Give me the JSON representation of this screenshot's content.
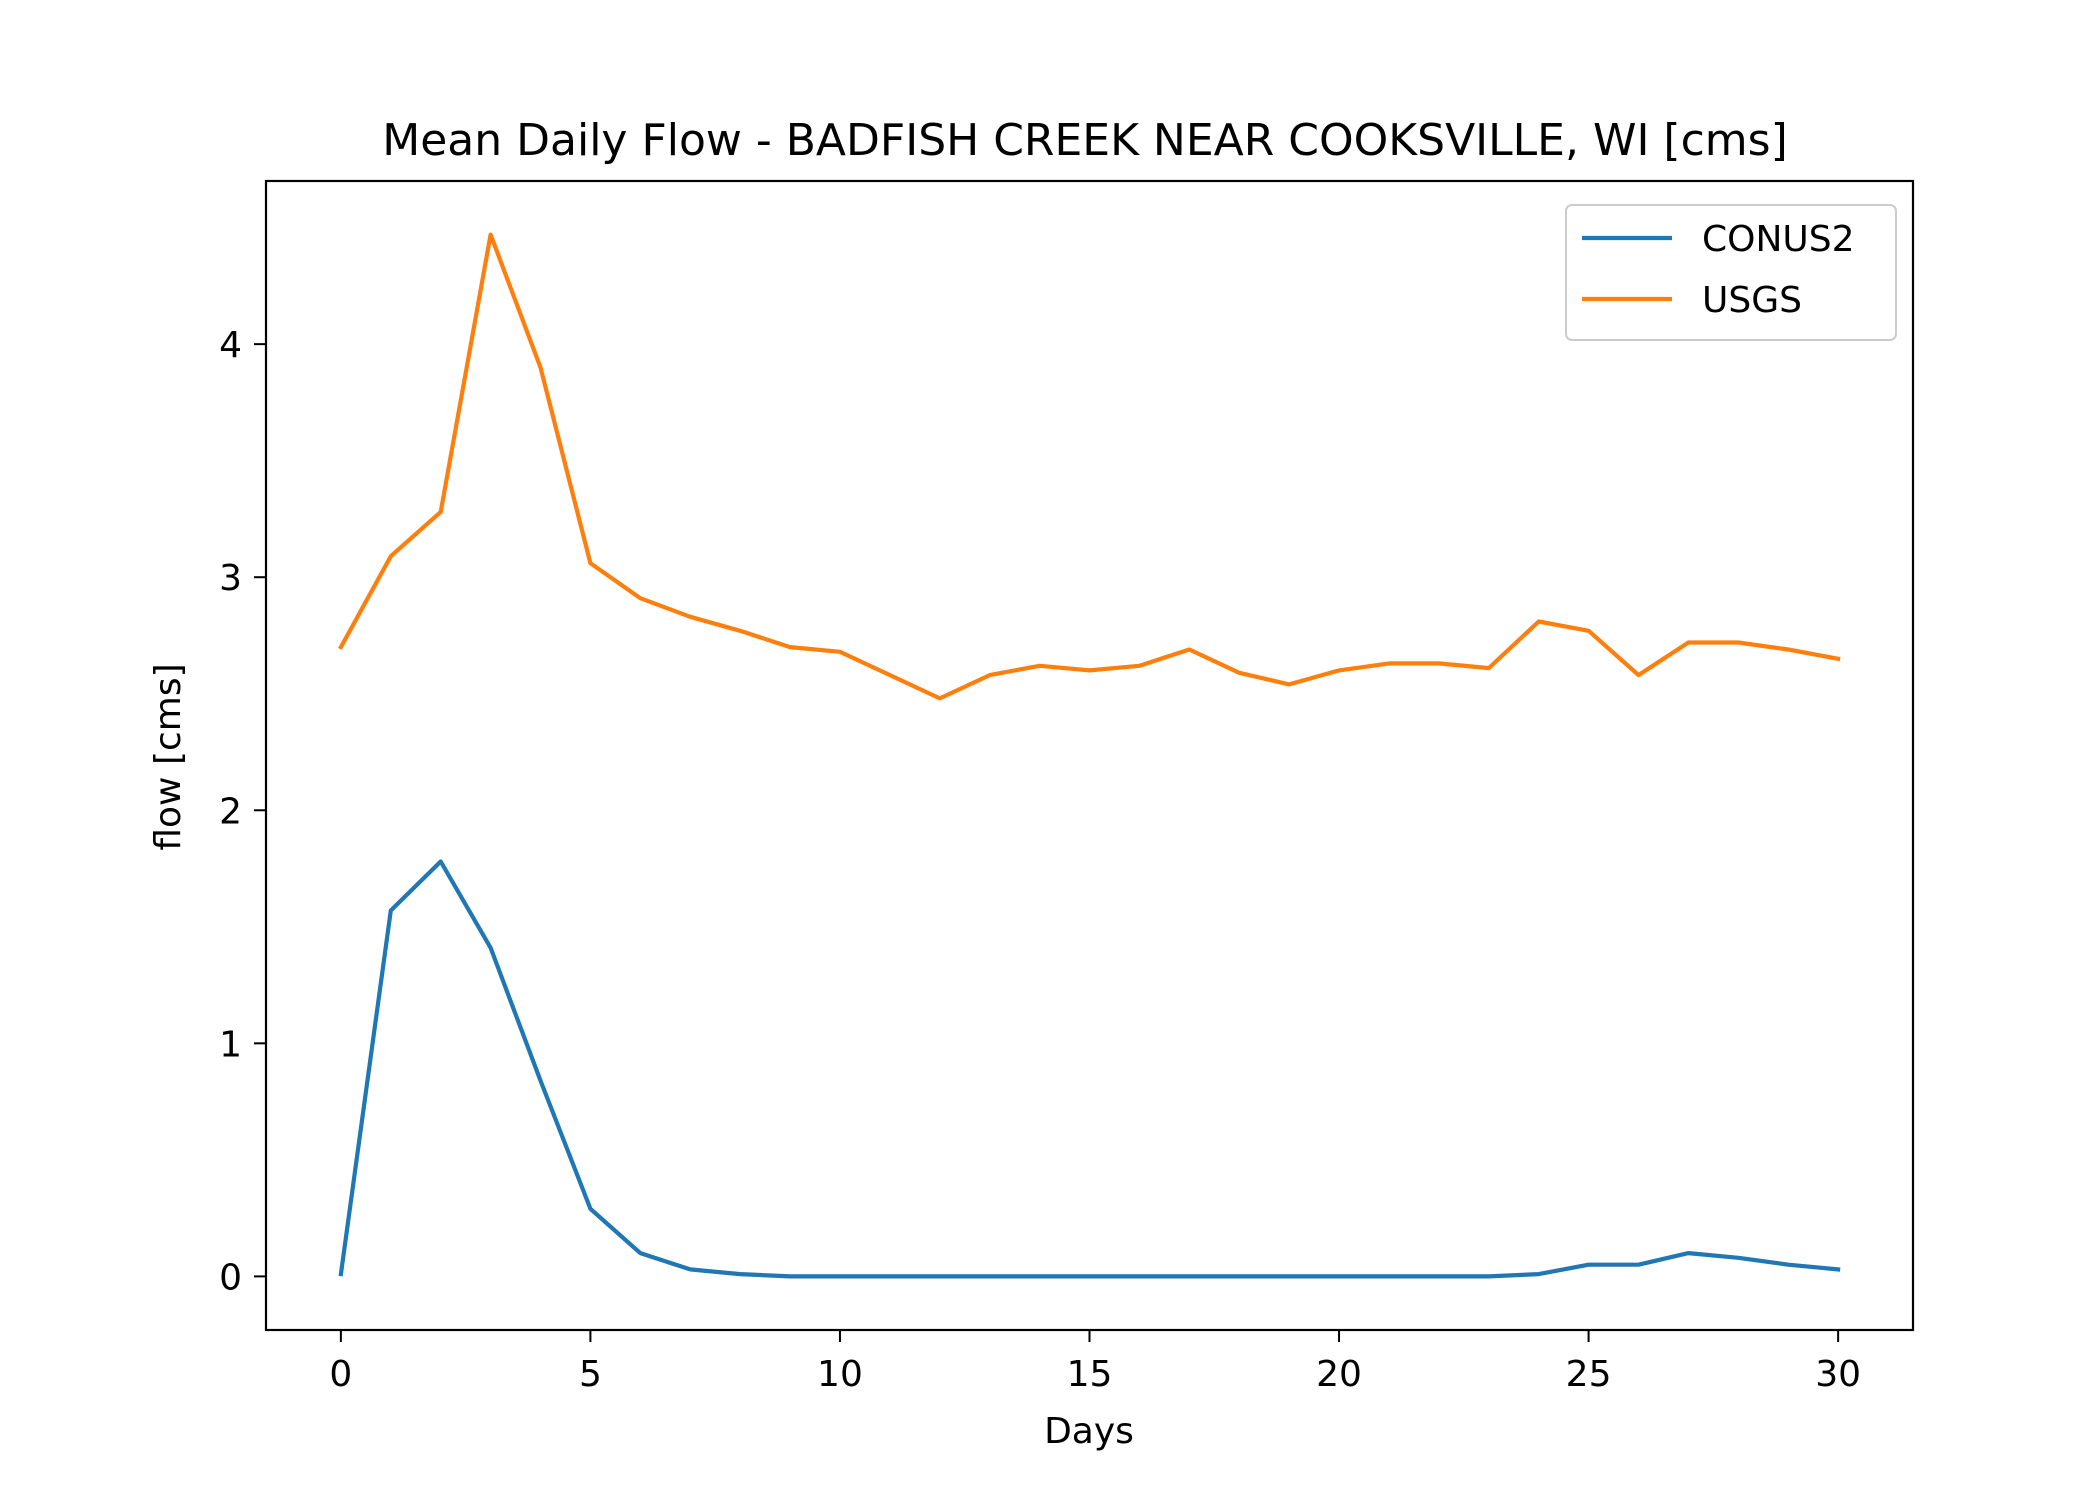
{
  "chart_data": {
    "type": "line",
    "title": "Mean Daily Flow - BADFISH CREEK NEAR COOKSVILLE, WI [cms]",
    "xlabel": "Days",
    "ylabel": "flow [cms]",
    "xlim": [
      -1.5,
      31.5
    ],
    "ylim": [
      -0.23,
      4.7
    ],
    "xticks": [
      0,
      5,
      10,
      15,
      20,
      25,
      30
    ],
    "yticks": [
      0,
      1,
      2,
      3,
      4
    ],
    "grid": false,
    "legend_position": "top-right",
    "x": [
      0,
      1,
      2,
      3,
      4,
      5,
      6,
      7,
      8,
      9,
      10,
      11,
      12,
      13,
      14,
      15,
      16,
      17,
      18,
      19,
      20,
      21,
      22,
      23,
      24,
      25,
      26,
      27,
      28,
      29,
      30
    ],
    "series": [
      {
        "name": "CONUS2",
        "color": "#1f77b4",
        "values": [
          0.01,
          1.57,
          1.78,
          1.41,
          0.84,
          0.29,
          0.1,
          0.03,
          0.01,
          0.0,
          0.0,
          0.0,
          0.0,
          0.0,
          0.0,
          0.0,
          0.0,
          0.0,
          0.0,
          0.0,
          0.0,
          0.0,
          0.0,
          0.0,
          0.01,
          0.05,
          0.05,
          0.1,
          0.08,
          0.05,
          0.03
        ]
      },
      {
        "name": "USGS",
        "color": "#ff7f0e",
        "values": [
          2.7,
          3.09,
          3.28,
          4.47,
          3.9,
          3.06,
          2.91,
          2.83,
          2.77,
          2.7,
          2.68,
          2.58,
          2.48,
          2.58,
          2.62,
          2.6,
          2.62,
          2.69,
          2.59,
          2.54,
          2.6,
          2.63,
          2.63,
          2.61,
          2.81,
          2.77,
          2.58,
          2.72,
          2.72,
          2.69,
          2.65
        ]
      }
    ]
  }
}
